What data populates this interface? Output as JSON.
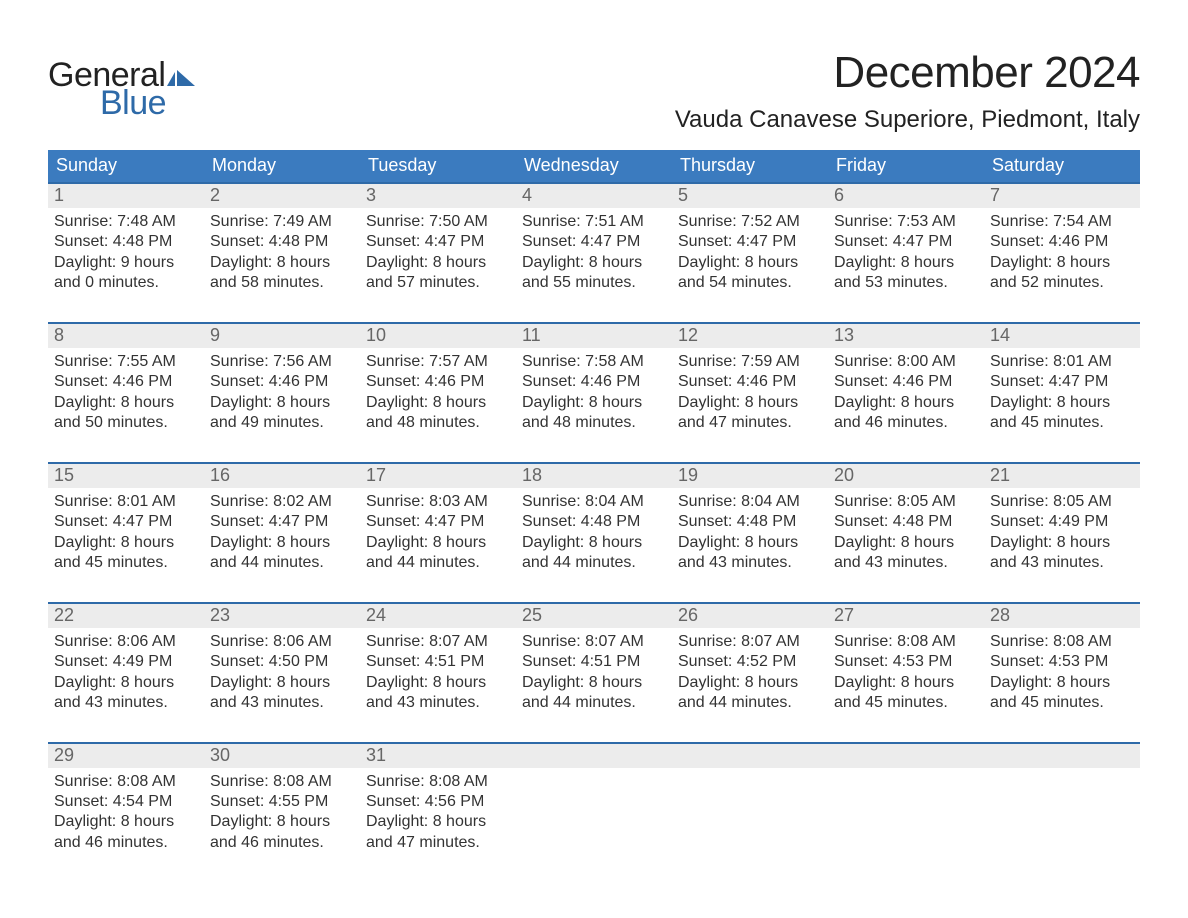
{
  "colors": {
    "header_blue": "#3b7bbf",
    "row_border": "#2e6aa8",
    "daynum_bg": "#ececec",
    "daynum_color": "#666666",
    "text": "#333333",
    "page_bg": "#ffffff",
    "logo_blue": "#2e6aa8",
    "logo_black": "#222222"
  },
  "logo": {
    "top": "General",
    "bottom": "Blue",
    "icon": "flag-icon"
  },
  "title": "December 2024",
  "location": "Vauda Canavese Superiore, Piedmont, Italy",
  "weekdays": [
    "Sunday",
    "Monday",
    "Tuesday",
    "Wednesday",
    "Thursday",
    "Friday",
    "Saturday"
  ],
  "field_labels": {
    "sunrise": "Sunrise",
    "sunset": "Sunset",
    "daylight": "Daylight"
  },
  "weeks": [
    [
      {
        "n": 1,
        "sunrise": "7:48 AM",
        "sunset": "4:48 PM",
        "dl_h": 9,
        "dl_m": 0
      },
      {
        "n": 2,
        "sunrise": "7:49 AM",
        "sunset": "4:48 PM",
        "dl_h": 8,
        "dl_m": 58
      },
      {
        "n": 3,
        "sunrise": "7:50 AM",
        "sunset": "4:47 PM",
        "dl_h": 8,
        "dl_m": 57
      },
      {
        "n": 4,
        "sunrise": "7:51 AM",
        "sunset": "4:47 PM",
        "dl_h": 8,
        "dl_m": 55
      },
      {
        "n": 5,
        "sunrise": "7:52 AM",
        "sunset": "4:47 PM",
        "dl_h": 8,
        "dl_m": 54
      },
      {
        "n": 6,
        "sunrise": "7:53 AM",
        "sunset": "4:47 PM",
        "dl_h": 8,
        "dl_m": 53
      },
      {
        "n": 7,
        "sunrise": "7:54 AM",
        "sunset": "4:46 PM",
        "dl_h": 8,
        "dl_m": 52
      }
    ],
    [
      {
        "n": 8,
        "sunrise": "7:55 AM",
        "sunset": "4:46 PM",
        "dl_h": 8,
        "dl_m": 50
      },
      {
        "n": 9,
        "sunrise": "7:56 AM",
        "sunset": "4:46 PM",
        "dl_h": 8,
        "dl_m": 49
      },
      {
        "n": 10,
        "sunrise": "7:57 AM",
        "sunset": "4:46 PM",
        "dl_h": 8,
        "dl_m": 48
      },
      {
        "n": 11,
        "sunrise": "7:58 AM",
        "sunset": "4:46 PM",
        "dl_h": 8,
        "dl_m": 48
      },
      {
        "n": 12,
        "sunrise": "7:59 AM",
        "sunset": "4:46 PM",
        "dl_h": 8,
        "dl_m": 47
      },
      {
        "n": 13,
        "sunrise": "8:00 AM",
        "sunset": "4:46 PM",
        "dl_h": 8,
        "dl_m": 46
      },
      {
        "n": 14,
        "sunrise": "8:01 AM",
        "sunset": "4:47 PM",
        "dl_h": 8,
        "dl_m": 45
      }
    ],
    [
      {
        "n": 15,
        "sunrise": "8:01 AM",
        "sunset": "4:47 PM",
        "dl_h": 8,
        "dl_m": 45
      },
      {
        "n": 16,
        "sunrise": "8:02 AM",
        "sunset": "4:47 PM",
        "dl_h": 8,
        "dl_m": 44
      },
      {
        "n": 17,
        "sunrise": "8:03 AM",
        "sunset": "4:47 PM",
        "dl_h": 8,
        "dl_m": 44
      },
      {
        "n": 18,
        "sunrise": "8:04 AM",
        "sunset": "4:48 PM",
        "dl_h": 8,
        "dl_m": 44
      },
      {
        "n": 19,
        "sunrise": "8:04 AM",
        "sunset": "4:48 PM",
        "dl_h": 8,
        "dl_m": 43
      },
      {
        "n": 20,
        "sunrise": "8:05 AM",
        "sunset": "4:48 PM",
        "dl_h": 8,
        "dl_m": 43
      },
      {
        "n": 21,
        "sunrise": "8:05 AM",
        "sunset": "4:49 PM",
        "dl_h": 8,
        "dl_m": 43
      }
    ],
    [
      {
        "n": 22,
        "sunrise": "8:06 AM",
        "sunset": "4:49 PM",
        "dl_h": 8,
        "dl_m": 43
      },
      {
        "n": 23,
        "sunrise": "8:06 AM",
        "sunset": "4:50 PM",
        "dl_h": 8,
        "dl_m": 43
      },
      {
        "n": 24,
        "sunrise": "8:07 AM",
        "sunset": "4:51 PM",
        "dl_h": 8,
        "dl_m": 43
      },
      {
        "n": 25,
        "sunrise": "8:07 AM",
        "sunset": "4:51 PM",
        "dl_h": 8,
        "dl_m": 44
      },
      {
        "n": 26,
        "sunrise": "8:07 AM",
        "sunset": "4:52 PM",
        "dl_h": 8,
        "dl_m": 44
      },
      {
        "n": 27,
        "sunrise": "8:08 AM",
        "sunset": "4:53 PM",
        "dl_h": 8,
        "dl_m": 45
      },
      {
        "n": 28,
        "sunrise": "8:08 AM",
        "sunset": "4:53 PM",
        "dl_h": 8,
        "dl_m": 45
      }
    ],
    [
      {
        "n": 29,
        "sunrise": "8:08 AM",
        "sunset": "4:54 PM",
        "dl_h": 8,
        "dl_m": 46
      },
      {
        "n": 30,
        "sunrise": "8:08 AM",
        "sunset": "4:55 PM",
        "dl_h": 8,
        "dl_m": 46
      },
      {
        "n": 31,
        "sunrise": "8:08 AM",
        "sunset": "4:56 PM",
        "dl_h": 8,
        "dl_m": 47
      },
      null,
      null,
      null,
      null
    ]
  ]
}
